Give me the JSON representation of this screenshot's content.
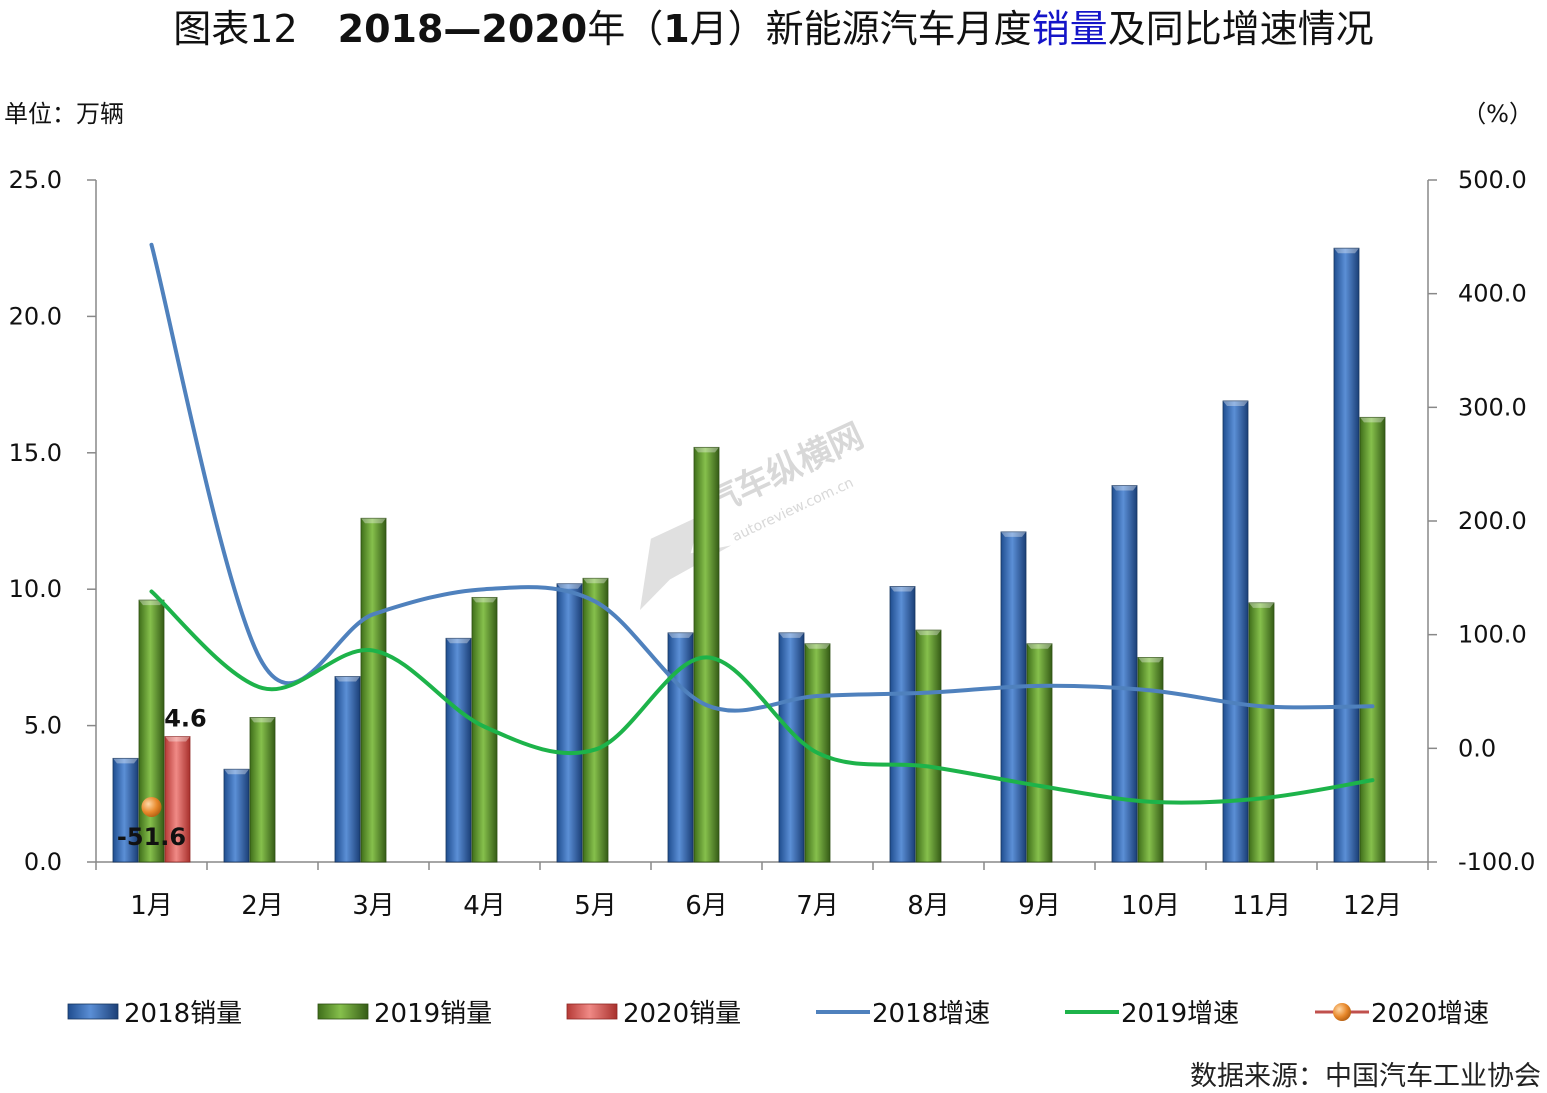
{
  "title": {
    "prefix": "图表12",
    "bold": "2018—2020",
    "mid1": "年（",
    "bold2": "1",
    "mid2": "月）新能源汽车月度",
    "highlight": "销量",
    "suffix": "及同比增速情况"
  },
  "unit_left": "单位：万辆",
  "unit_right": "（%）",
  "source": "数据来源：中国汽车工业协会",
  "watermark": {
    "cn": "汽车纵横网",
    "url": "autoreview.com.cn"
  },
  "colors": {
    "bar2018": "#3a6fb8",
    "bar2019": "#5f9a2f",
    "bar2020": "#d9534f",
    "line2018": "#4f81bd",
    "line2019": "#1db34a",
    "point2020": "#e8892c"
  },
  "chart_data": {
    "type": "bar",
    "categories": [
      "1月",
      "2月",
      "3月",
      "4月",
      "5月",
      "6月",
      "7月",
      "8月",
      "9月",
      "10月",
      "11月",
      "12月"
    ],
    "y_left": {
      "ylim": [
        0,
        25
      ],
      "ticks": [
        "0.0",
        "5.0",
        "10.0",
        "15.0",
        "20.0",
        "25.0"
      ]
    },
    "y_right": {
      "ylim": [
        -100,
        500
      ],
      "ticks": [
        "-100.0",
        "0.0",
        "100.0",
        "200.0",
        "300.0",
        "400.0",
        "500.0"
      ]
    },
    "series": [
      {
        "name": "2018销量",
        "type": "bar",
        "axis": "left",
        "values": [
          3.8,
          3.4,
          6.8,
          8.2,
          10.2,
          8.4,
          8.4,
          10.1,
          12.1,
          13.8,
          16.9,
          22.5
        ]
      },
      {
        "name": "2019销量",
        "type": "bar",
        "axis": "left",
        "values": [
          9.6,
          5.3,
          12.6,
          9.7,
          10.4,
          15.2,
          8.0,
          8.5,
          8.0,
          7.5,
          9.5,
          16.3
        ]
      },
      {
        "name": "2020销量",
        "type": "bar",
        "axis": "left",
        "values": [
          4.6,
          null,
          null,
          null,
          null,
          null,
          null,
          null,
          null,
          null,
          null,
          null
        ],
        "labels": [
          "4.6"
        ]
      },
      {
        "name": "2018增速",
        "type": "line",
        "axis": "right",
        "values": [
          443,
          75,
          118,
          140,
          129,
          38,
          46,
          49,
          55,
          51,
          37,
          37
        ]
      },
      {
        "name": "2019增速",
        "type": "line",
        "axis": "right",
        "values": [
          138,
          53,
          86,
          19,
          -1,
          80,
          -4,
          -16,
          -33,
          -47,
          -44,
          -28
        ]
      },
      {
        "name": "2020增速",
        "type": "point",
        "axis": "right",
        "values": [
          -51.6,
          null,
          null,
          null,
          null,
          null,
          null,
          null,
          null,
          null,
          null,
          null
        ],
        "labels": [
          "-51.6"
        ]
      }
    ],
    "legend_position": "bottom"
  }
}
